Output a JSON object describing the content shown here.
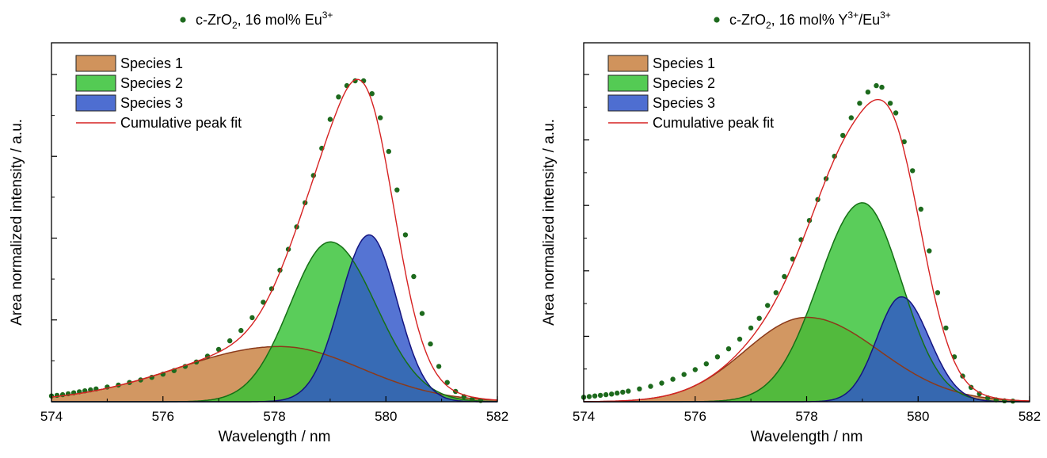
{
  "chart_data": [
    {
      "type": "area",
      "title": "c-ZrO2, 16 mol% Eu3+",
      "title_parts": {
        "base": "c-ZrO",
        "sub": "2",
        "mid": ", 16 mol% Eu",
        "sup": "3+"
      },
      "xlabel": "Wavelength / nm",
      "ylabel": "Area normalized intensity / a.u.",
      "xlim": [
        574,
        582
      ],
      "ylim": [
        0,
        1.0
      ],
      "xticks": [
        "574",
        "576",
        "578",
        "580",
        "582"
      ],
      "grid": false,
      "legend_position": "top-left",
      "legend": [
        "Species 1",
        "Species 2",
        "Species 3",
        "Cumulative peak fit"
      ],
      "series": [
        {
          "name": "Species 1",
          "kind": "band",
          "color": "#c8803f",
          "edge": "#8b3a1a",
          "center": 578.1,
          "amplitude": 0.172,
          "sigma_left": 1.85,
          "sigma_right": 1.45
        },
        {
          "name": "Species 2",
          "kind": "band",
          "color": "#36c236",
          "edge": "#157015",
          "center": 579.0,
          "amplitude": 0.498,
          "sigma_left": 0.72,
          "sigma_right": 0.82
        },
        {
          "name": "Species 3",
          "kind": "band",
          "color": "#2f55c9",
          "edge": "#141480",
          "center": 579.7,
          "amplitude": 0.52,
          "sigma_left": 0.52,
          "sigma_right": 0.5
        },
        {
          "name": "Cumulative peak fit",
          "kind": "line",
          "color": "#d62222"
        }
      ],
      "scatter": {
        "color": "#1d6a1d",
        "x": [
          574.0,
          574.1,
          574.2,
          574.3,
          574.4,
          574.5,
          574.6,
          574.7,
          574.8,
          575.0,
          575.2,
          575.4,
          575.6,
          575.8,
          576.0,
          576.2,
          576.4,
          576.6,
          576.8,
          577.0,
          577.2,
          577.4,
          577.6,
          577.8,
          577.95,
          578.1,
          578.25,
          578.4,
          578.55,
          578.7,
          578.85,
          579.0,
          579.15,
          579.3,
          579.45,
          579.6,
          579.75,
          579.9,
          580.05,
          580.2,
          580.35,
          580.5,
          580.65,
          580.8,
          580.95,
          581.1,
          581.25,
          581.4,
          581.55,
          581.7
        ],
        "y": [
          0.018,
          0.02,
          0.022,
          0.025,
          0.028,
          0.031,
          0.034,
          0.037,
          0.04,
          0.046,
          0.052,
          0.06,
          0.068,
          0.076,
          0.086,
          0.097,
          0.11,
          0.124,
          0.142,
          0.163,
          0.19,
          0.222,
          0.262,
          0.31,
          0.352,
          0.41,
          0.475,
          0.545,
          0.62,
          0.705,
          0.79,
          0.88,
          0.95,
          0.985,
          1.0,
          1.0,
          0.96,
          0.885,
          0.78,
          0.66,
          0.52,
          0.39,
          0.275,
          0.18,
          0.11,
          0.06,
          0.032,
          0.016,
          0.008,
          0.004
        ]
      }
    },
    {
      "type": "area",
      "title": "c-ZrO2, 16 mol% Y3+/Eu3+",
      "title_parts": {
        "base": "c-ZrO",
        "sub": "2",
        "mid": ", 16 mol% Y",
        "sup": "3+",
        "mid2": "/Eu",
        "sup2": "3+"
      },
      "xlabel": "Wavelength / nm",
      "ylabel": "Area normalized intensity / a.u.",
      "xlim": [
        574,
        582
      ],
      "ylim": [
        0,
        1.0
      ],
      "xticks": [
        "574",
        "576",
        "578",
        "580",
        "582"
      ],
      "grid": false,
      "legend_position": "top-left",
      "legend": [
        "Species 1",
        "Species 2",
        "Species 3",
        "Cumulative peak fit"
      ],
      "series": [
        {
          "name": "Species 1",
          "kind": "band",
          "color": "#c8803f",
          "edge": "#8b3a1a",
          "center": 578.0,
          "amplitude": 0.263,
          "sigma_left": 1.1,
          "sigma_right": 1.3
        },
        {
          "name": "Species 2",
          "kind": "band",
          "color": "#36c236",
          "edge": "#157015",
          "center": 579.0,
          "amplitude": 0.62,
          "sigma_left": 0.78,
          "sigma_right": 0.7
        },
        {
          "name": "Species 3",
          "kind": "band",
          "color": "#2f55c9",
          "edge": "#141480",
          "center": 579.7,
          "amplitude": 0.327,
          "sigma_left": 0.44,
          "sigma_right": 0.5
        },
        {
          "name": "Cumulative peak fit",
          "kind": "line",
          "color": "#d62222"
        }
      ],
      "scatter": {
        "color": "#1d6a1d",
        "x": [
          574.0,
          574.1,
          574.2,
          574.3,
          574.4,
          574.5,
          574.6,
          574.7,
          574.8,
          575.0,
          575.2,
          575.4,
          575.6,
          575.8,
          576.0,
          576.2,
          576.4,
          576.6,
          576.8,
          577.0,
          577.15,
          577.3,
          577.45,
          577.6,
          577.75,
          577.9,
          578.05,
          578.2,
          578.35,
          578.5,
          578.65,
          578.8,
          578.95,
          579.1,
          579.25,
          579.35,
          579.5,
          579.6,
          579.75,
          579.9,
          580.05,
          580.2,
          580.35,
          580.5,
          580.65,
          580.8,
          580.95,
          581.1,
          581.25,
          581.4,
          581.55,
          581.7
        ],
        "y": [
          0.014,
          0.016,
          0.018,
          0.02,
          0.022,
          0.024,
          0.027,
          0.03,
          0.033,
          0.04,
          0.048,
          0.058,
          0.07,
          0.085,
          0.1,
          0.118,
          0.14,
          0.165,
          0.195,
          0.23,
          0.26,
          0.3,
          0.34,
          0.39,
          0.445,
          0.505,
          0.565,
          0.63,
          0.695,
          0.765,
          0.83,
          0.885,
          0.93,
          0.965,
          0.985,
          0.98,
          0.93,
          0.9,
          0.81,
          0.72,
          0.6,
          0.47,
          0.34,
          0.23,
          0.14,
          0.08,
          0.045,
          0.025,
          0.012,
          0.006,
          0.003,
          0.002
        ]
      }
    }
  ]
}
